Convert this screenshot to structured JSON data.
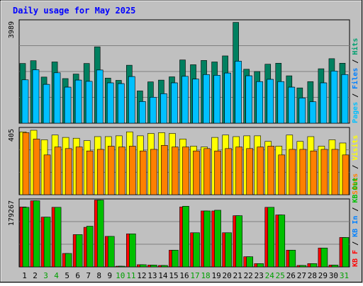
{
  "chart_data": {
    "type": "bar",
    "title": "Daily usage for May 2025",
    "x": [
      "1",
      "2",
      "3",
      "4",
      "5",
      "6",
      "7",
      "8",
      "9",
      "10",
      "11",
      "12",
      "13",
      "14",
      "15",
      "16",
      "17",
      "18",
      "19",
      "20",
      "21",
      "22",
      "23",
      "24",
      "25",
      "26",
      "27",
      "28",
      "29",
      "30",
      "31"
    ],
    "weekend_days": [
      "3",
      "4",
      "10",
      "11",
      "17",
      "18",
      "24",
      "25",
      "31"
    ],
    "panels": [
      {
        "id": "hits-files-pages",
        "max_label": "3989",
        "ymax": 3989,
        "right_label": [
          {
            "text": "Pages",
            "color": "#00c0ff"
          },
          {
            "text": " / ",
            "color": "#000000"
          },
          {
            "text": "Files",
            "color": "#0080ff"
          },
          {
            "text": " / ",
            "color": "#000000"
          },
          {
            "text": "Hits",
            "color": "#00a070"
          }
        ],
        "series": [
          {
            "key": "hits",
            "color": "#008060",
            "values": [
              2370,
              2480,
              1830,
              2430,
              1770,
              1950,
              2370,
              3030,
              1790,
              1700,
              2300,
              1280,
              1640,
              1710,
              1840,
              2510,
              2320,
              2490,
              2430,
              2670,
              4000,
              2140,
              2050,
              2340,
              2380,
              1880,
              1400,
              1650,
              2160,
              2560,
              2380
            ]
          },
          {
            "key": "files",
            "color": "#0080ff",
            "values": [
              1720,
              2120,
              1540,
              2000,
              1430,
              1710,
              1660,
              2110,
              1600,
              1570,
              1850,
              860,
              1030,
              1170,
              1600,
              1860,
              1750,
              1930,
              1900,
              1990,
              2460,
              1880,
              1650,
              1740,
              1650,
              1430,
              1000,
              850,
              1600,
              2070,
              1930
            ]
          },
          {
            "key": "pages",
            "color": "#00c0ff",
            "values": [
              1720,
              2120,
              1540,
              2000,
              1430,
              1710,
              1660,
              2110,
              1600,
              1570,
              1850,
              860,
              1030,
              1170,
              1600,
              1860,
              1750,
              1930,
              1900,
              1990,
              2460,
              1880,
              1650,
              1740,
              1650,
              1430,
              1000,
              850,
              1600,
              2070,
              1930
            ]
          }
        ]
      },
      {
        "id": "visits-sites",
        "max_label": "405",
        "ymax": 405,
        "right_label": [
          {
            "text": "Sites",
            "color": "#ff8000"
          },
          {
            "text": " / ",
            "color": "#000000"
          },
          {
            "text": "Visits",
            "color": "#ffff00"
          }
        ],
        "series": [
          {
            "key": "visits",
            "color": "#ffff00",
            "values": [
              395,
              405,
              345,
              375,
              360,
              355,
              340,
              365,
              365,
              370,
              395,
              370,
              385,
              390,
              385,
              350,
              305,
              300,
              360,
              375,
              365,
              370,
              370,
              335,
              305,
              375,
              335,
              365,
              305,
              345,
              325
            ]
          },
          {
            "key": "sites",
            "color": "#ff8000",
            "values": [
              390,
              350,
              250,
              300,
              290,
              300,
              275,
              285,
              305,
              300,
              305,
              275,
              285,
              310,
              300,
              300,
              275,
              290,
              275,
              290,
              300,
              290,
              300,
              305,
              250,
              285,
              285,
              275,
              285,
              285,
              250
            ]
          }
        ]
      },
      {
        "id": "kb-in-out-f",
        "max_label": "179267",
        "ymax": 179267,
        "right_label": [
          {
            "text": "KB F",
            "color": "#ff0000"
          },
          {
            "text": " / ",
            "color": "#000000"
          },
          {
            "text": "KB In",
            "color": "#0080ff"
          },
          {
            "text": " / ",
            "color": "#000000"
          },
          {
            "text": "KB Out",
            "color": "#00c000"
          }
        ],
        "series": [
          {
            "key": "kb_f",
            "color": "#ff0000",
            "values": [
              165000,
              182000,
              137000,
              164000,
              37000,
              89000,
              109000,
              184000,
              84000,
              1000,
              91000,
              6000,
              5000,
              4000,
              46000,
              165000,
              94000,
              154000,
              154000,
              94000,
              141000,
              28000,
              9000,
              164000,
              143000,
              46000,
              4000,
              9000,
              52000,
              5000,
              81000
            ]
          },
          {
            "key": "kb_out",
            "color": "#00c000",
            "values": [
              164000,
              182000,
              137000,
              164000,
              37000,
              89000,
              112000,
              184000,
              84000,
              1000,
              91000,
              6000,
              5000,
              4000,
              46000,
              167000,
              94000,
              154000,
              156000,
              94000,
              141000,
              28000,
              9000,
              164000,
              143000,
              46000,
              4000,
              9000,
              52000,
              5000,
              81000
            ]
          }
        ]
      }
    ]
  }
}
